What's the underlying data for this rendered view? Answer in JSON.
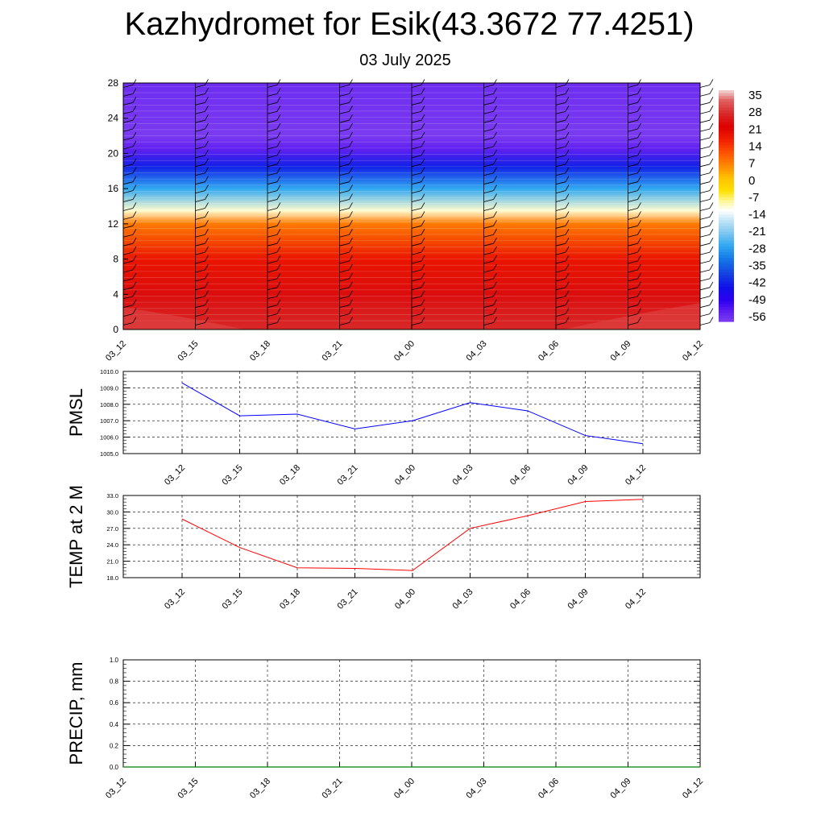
{
  "title": "Kazhydromet for Esik(43.3672 77.4251)",
  "subtitle": "03 July 2025",
  "chart_data": [
    {
      "type": "heatmap",
      "name": "vertical temperature / wind cross-section",
      "y_ticks": [
        "0",
        "4",
        "8",
        "12",
        "16",
        "20",
        "24",
        "28"
      ],
      "ylim": [
        0,
        28
      ],
      "x_ticks": [
        "03_12",
        "03_15",
        "03_18",
        "03_21",
        "04_00",
        "04_03",
        "04_06",
        "04_09",
        "04_12"
      ],
      "colorbar_labels": [
        "35",
        "28",
        "21",
        "14",
        "7",
        "0",
        "-7",
        "-14",
        "-21",
        "-28",
        "-35",
        "-42",
        "-49",
        "-56"
      ],
      "colorbar_range": [
        -63,
        42
      ],
      "levels_approx": [
        {
          "y": 0,
          "value": 32
        },
        {
          "y": 4,
          "value": 28
        },
        {
          "y": 8,
          "value": 22
        },
        {
          "y": 12,
          "value": 10
        },
        {
          "y": 13.5,
          "value": -10
        },
        {
          "y": 16,
          "value": -28
        },
        {
          "y": 18.5,
          "value": -45
        },
        {
          "y": 20.5,
          "value": -58
        },
        {
          "y": 22,
          "value": -62
        },
        {
          "y": 28,
          "value": -60
        }
      ],
      "wind_barb_color": "#000000"
    },
    {
      "type": "line",
      "ylabel": "PMSL",
      "ylim": [
        1005.0,
        1010.0
      ],
      "y_ticks": [
        "1005.0",
        "1006.0",
        "1007.0",
        "1008.0",
        "1009.0",
        "1010.0"
      ],
      "x": [
        "03_12",
        "03_15",
        "03_18",
        "03_21",
        "04_00",
        "04_03",
        "04_06",
        "04_09",
        "04_12"
      ],
      "series": [
        {
          "values": [
            1009.3,
            1007.3,
            1007.4,
            1006.5,
            1007.0,
            1008.1,
            1007.6,
            1006.1,
            1005.6
          ],
          "color": "#0000ff"
        }
      ]
    },
    {
      "type": "line",
      "ylabel": "TEMP at 2 M",
      "ylim": [
        18.0,
        33.0
      ],
      "y_ticks": [
        "18.0",
        "21.0",
        "24.0",
        "27.0",
        "30.0",
        "33.0"
      ],
      "x": [
        "03_12",
        "03_15",
        "03_18",
        "03_21",
        "04_00",
        "04_03",
        "04_06",
        "04_09",
        "04_12"
      ],
      "series": [
        {
          "values": [
            28.7,
            23.5,
            19.8,
            19.7,
            19.3,
            27.0,
            29.3,
            31.9,
            32.3
          ],
          "color": "#ff0000"
        }
      ]
    },
    {
      "type": "line",
      "ylabel": "PRECIP, mm",
      "ylim": [
        0.0,
        1.0
      ],
      "y_ticks": [
        "0.0",
        "0.2",
        "0.4",
        "0.6",
        "0.8",
        "1.0"
      ],
      "x_ticks": [
        "03_12",
        "03_15",
        "03_18",
        "03_21",
        "04_00",
        "04_03",
        "04_06",
        "04_09",
        "04_12"
      ],
      "series": [
        {
          "values": [
            0,
            0,
            0,
            0,
            0,
            0,
            0,
            0,
            0
          ],
          "color": "#008000"
        }
      ]
    }
  ]
}
